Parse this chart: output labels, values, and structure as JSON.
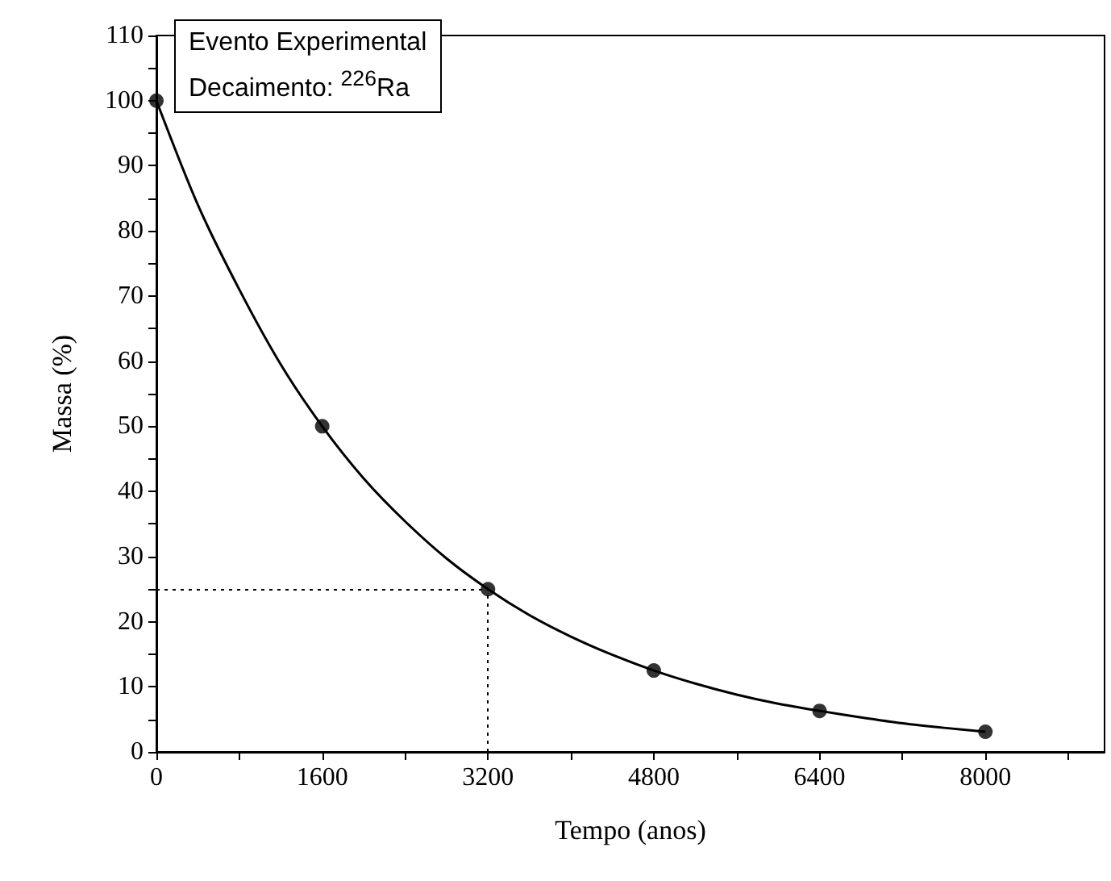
{
  "chart_data": {
    "type": "scatter",
    "xlabel": "Tempo (anos)",
    "ylabel": "Massa (%)",
    "annotations": [
      "Evento Experimental",
      "Decaimento: $^{226}$Ra"
    ],
    "xlim": [
      0,
      9150
    ],
    "ylim": [
      0,
      110
    ],
    "xticks": [
      0,
      {
        "value": 800,
        "label": null
      },
      1600,
      {
        "value": 2400,
        "label": null
      },
      3200,
      {
        "value": 4000,
        "label": null
      },
      4800,
      {
        "value": 5600,
        "label": null
      },
      6400,
      {
        "value": 7200,
        "label": null
      },
      8000,
      {
        "value": 8800,
        "label": null
      }
    ],
    "yticks": [
      0,
      {
        "value": 5,
        "label": null
      },
      10,
      {
        "value": 15,
        "label": null
      },
      20,
      {
        "value": 25,
        "label": null
      },
      30,
      {
        "value": 35,
        "label": null
      },
      40,
      {
        "value": 45,
        "label": null
      },
      50,
      {
        "value": 55,
        "label": null
      },
      60,
      {
        "value": 65,
        "label": null
      },
      70,
      {
        "value": 75,
        "label": null
      },
      80,
      {
        "value": 85,
        "label": null
      },
      90,
      {
        "value": 95,
        "label": null
      },
      100,
      {
        "value": 105,
        "label": null
      },
      110
    ],
    "marker": "circle",
    "series": [
      {
        "color": "#000000",
        "x": [
          0,
          1600,
          3200,
          4800,
          6400,
          8000
        ],
        "values": [
          100,
          50,
          25,
          12.5,
          6.3,
          3.1
        ]
      },
      {
        "type": "line",
        "marker": "none",
        "color": "#000000",
        "x": [
          0,
          400,
          800,
          1200,
          1600,
          2000,
          2400,
          2800,
          3200,
          3600,
          4000,
          4400,
          4800,
          5200,
          5600,
          6000,
          6400,
          6800,
          7200,
          7600,
          8000
        ],
        "values": [
          100,
          84,
          71,
          59.5,
          50,
          42,
          35.4,
          29.7,
          25,
          21,
          17.7,
          14.9,
          12.5,
          10.5,
          8.8,
          7.4,
          6.3,
          5.3,
          4.4,
          3.7,
          3.1
        ]
      }
    ],
    "ref_lines": [
      {
        "axis": "y",
        "value": 25,
        "line_style": "dotted",
        "color": "#000000"
      },
      {
        "axis": "x",
        "value": 3200,
        "line_style": "dotted",
        "color": "#000000"
      }
    ]
  }
}
